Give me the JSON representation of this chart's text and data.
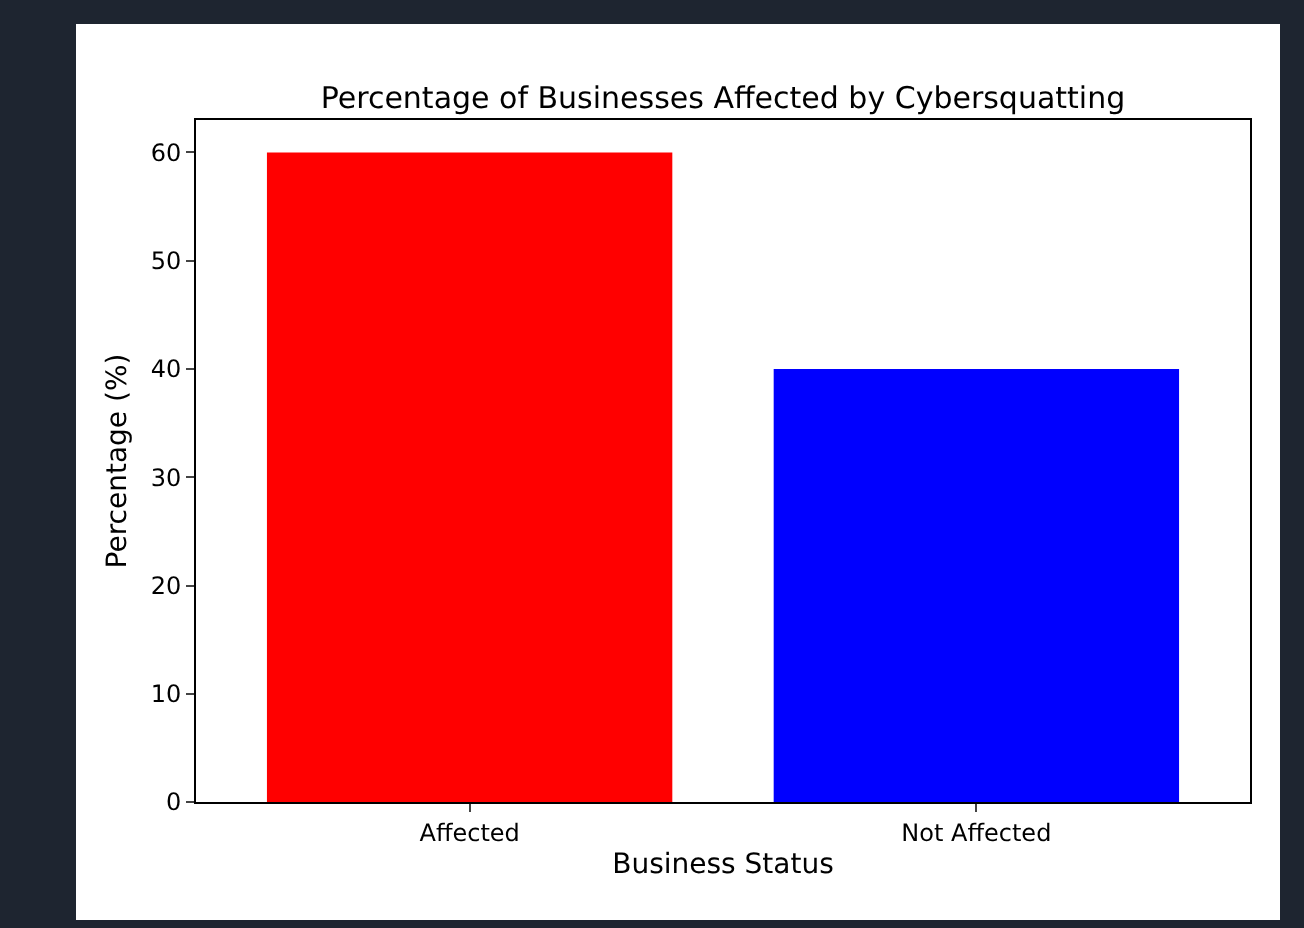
{
  "chart_data": {
    "type": "bar",
    "title": "Percentage of Businesses Affected by Cybersquatting",
    "xlabel": "Business Status",
    "ylabel": "Percentage (%)",
    "categories": [
      "Affected",
      "Not Affected"
    ],
    "values": [
      60,
      40
    ],
    "colors": [
      "#ff0000",
      "#0000ff"
    ],
    "ylim": [
      0,
      63
    ],
    "yticks": [
      0,
      10,
      20,
      30,
      40,
      50,
      60
    ],
    "grid": false,
    "legend": false
  }
}
